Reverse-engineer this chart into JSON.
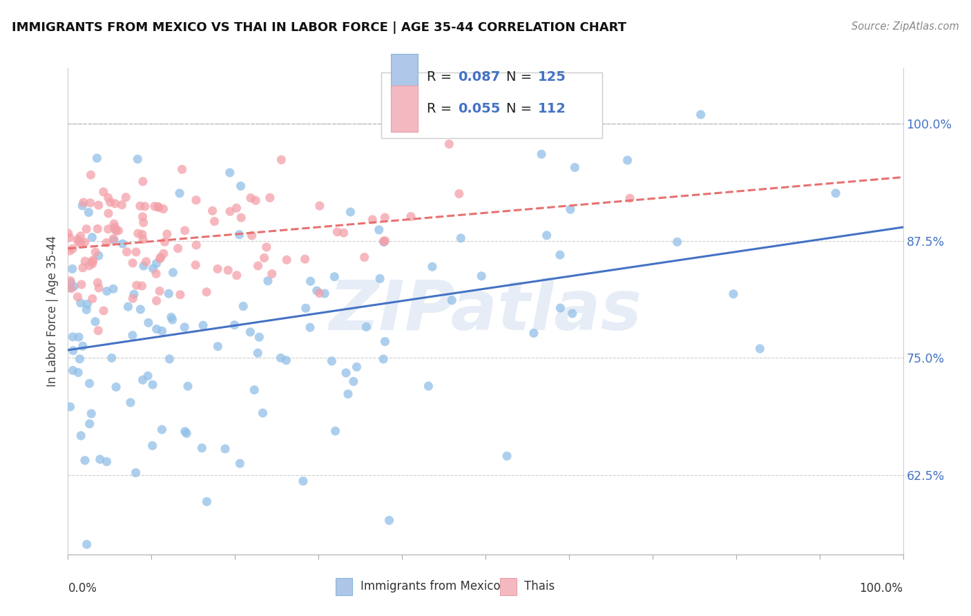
{
  "title": "IMMIGRANTS FROM MEXICO VS THAI IN LABOR FORCE | AGE 35-44 CORRELATION CHART",
  "source": "Source: ZipAtlas.com",
  "ylabel": "In Labor Force | Age 35-44",
  "ytick_vals": [
    0.625,
    0.75,
    0.875,
    1.0
  ],
  "ytick_labels": [
    "62.5%",
    "75.0%",
    "87.5%",
    "100.0%"
  ],
  "xtick_left": "0.0%",
  "xtick_right": "100.0%",
  "mexico_color": "#92C0E8",
  "mexico_edge": "#92C0E8",
  "thai_color": "#F4A0A8",
  "thai_edge": "#F4A0A8",
  "mexico_line_color": "#4472C4",
  "thai_line_color": "#E87070",
  "legend_box_blue": "#AEC6E8",
  "legend_box_pink": "#F4B8C1",
  "accent_color": "#4472C4",
  "text_color": "#222222",
  "grid_color": "#CCCCCC",
  "R_mexico": 0.087,
  "N_mexico": 125,
  "R_thai": 0.055,
  "N_thai": 112,
  "xlim": [
    0.0,
    1.0
  ],
  "ylim": [
    0.54,
    1.06
  ],
  "watermark": "ZIPatlas",
  "bottom_legend_mexico": "Immigrants from Mexico",
  "bottom_legend_thai": "Thais"
}
